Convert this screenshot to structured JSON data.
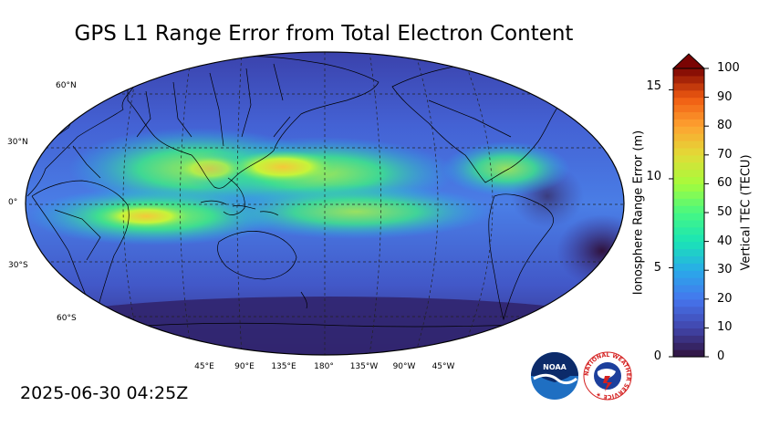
{
  "title": "GPS L1 Range Error from Total Electron Content",
  "timestamp": "2025-06-30 04:25Z",
  "lat_labels": [
    "60°N",
    "30°N",
    "0°",
    "30°S",
    "60°S"
  ],
  "lon_labels": [
    "45°E",
    "90°E",
    "135°E",
    "180°",
    "135°W",
    "90°W",
    "45°W"
  ],
  "colorbar": {
    "left_label": "Ionosphere Range Error (m)",
    "right_label": "Vertical TEC (TECU)",
    "left_ticks": [
      "0",
      "5",
      "10",
      "15"
    ],
    "right_ticks": [
      "0",
      "10",
      "20",
      "30",
      "40",
      "50",
      "60",
      "70",
      "80",
      "90",
      "100"
    ],
    "tec_range": [
      0,
      100
    ],
    "error_range": [
      0,
      16.2
    ],
    "extend": "max"
  },
  "logos": {
    "noaa": "NOAA",
    "nws": "NATIONAL WEATHER SERVICE"
  },
  "colors": {
    "low": "#30123b",
    "mid_low": "#4662d7",
    "mid": "#1ae4b6",
    "mid_high": "#faba39",
    "high": "#7a0403"
  }
}
